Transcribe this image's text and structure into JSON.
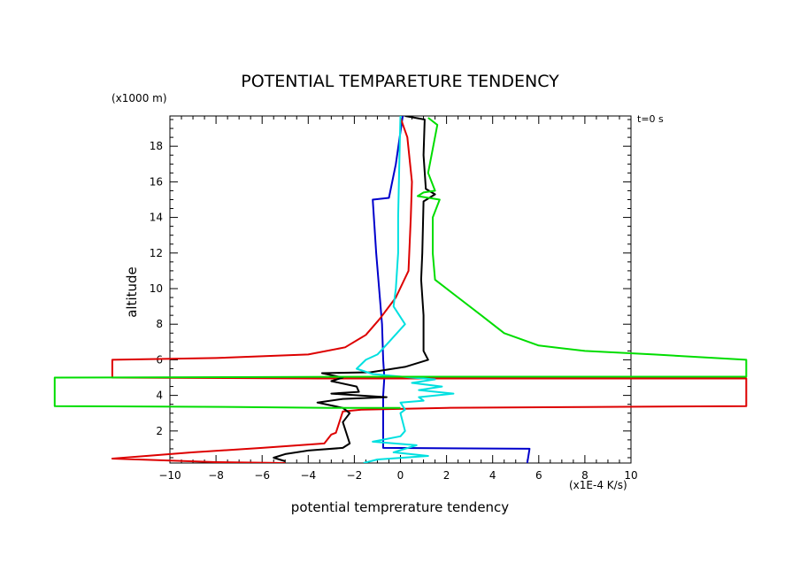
{
  "chart_data": {
    "type": "line",
    "title": "POTENTIAL TEMPARETURE TENDENCY",
    "xlabel": "potential temprerature tendency",
    "xunit": "(x1E-4 K/s)",
    "ylabel": "altitude",
    "yunit": "(x1000 m)",
    "time_label": "t=0 s",
    "xlim": [
      -10,
      10
    ],
    "ylim": [
      0.2,
      19.7
    ],
    "xticks": [
      -10,
      -8,
      -6,
      -4,
      -2,
      0,
      2,
      4,
      6,
      8,
      10
    ],
    "yticks": [
      2,
      4,
      6,
      8,
      10,
      12,
      14,
      16,
      18
    ],
    "series": [
      {
        "name": "blue",
        "color": "#0000cc",
        "points": [
          [
            0.1,
            19.7
          ],
          [
            -0.2,
            17.0
          ],
          [
            -0.5,
            15.1
          ],
          [
            -1.2,
            15.0
          ],
          [
            -1.05,
            12.0
          ],
          [
            -0.8,
            8.0
          ],
          [
            -0.75,
            6.0
          ],
          [
            -0.7,
            5.0
          ],
          [
            -0.75,
            4.0
          ],
          [
            -0.75,
            3.0
          ],
          [
            -0.75,
            1.05
          ],
          [
            5.6,
            1.0
          ],
          [
            5.5,
            0.2
          ]
        ]
      },
      {
        "name": "red",
        "color": "#dd0000",
        "points": [
          [
            0.0,
            19.6
          ],
          [
            0.3,
            18.5
          ],
          [
            0.5,
            16.0
          ],
          [
            0.45,
            14.0
          ],
          [
            0.35,
            11.0
          ],
          [
            -0.2,
            9.5
          ],
          [
            -0.9,
            8.3
          ],
          [
            -1.5,
            7.4
          ],
          [
            -2.4,
            6.7
          ],
          [
            -4,
            6.3
          ],
          [
            -8,
            6.1
          ],
          [
            -12.5,
            6.0
          ],
          [
            -12.5,
            5.0
          ],
          [
            -3.5,
            4.95
          ],
          [
            0,
            4.95
          ],
          [
            15,
            4.95
          ],
          [
            15,
            3.4
          ],
          [
            8,
            3.35
          ],
          [
            2,
            3.3
          ],
          [
            -1.7,
            3.2
          ],
          [
            -2.5,
            3.1
          ],
          [
            -2.7,
            2.3
          ],
          [
            -2.8,
            1.9
          ],
          [
            -3,
            1.8
          ],
          [
            -3.3,
            1.3
          ],
          [
            -6,
            1.05
          ],
          [
            -9,
            0.8
          ],
          [
            -12.5,
            0.45
          ],
          [
            -8,
            0.25
          ],
          [
            -5,
            0.2
          ]
        ]
      },
      {
        "name": "black",
        "color": "#000000",
        "points": [
          [
            0.2,
            19.7
          ],
          [
            1.05,
            19.5
          ],
          [
            1.0,
            17.5
          ],
          [
            1.1,
            15.6
          ],
          [
            1.5,
            15.3
          ],
          [
            1.0,
            14.9
          ],
          [
            0.95,
            12.0
          ],
          [
            0.9,
            10.5
          ],
          [
            1.0,
            8.5
          ],
          [
            1.0,
            6.5
          ],
          [
            1.2,
            6.0
          ],
          [
            0.2,
            5.6
          ],
          [
            -1.3,
            5.3
          ],
          [
            -3.4,
            5.25
          ],
          [
            -2.5,
            5.0
          ],
          [
            -3.0,
            4.8
          ],
          [
            -1.9,
            4.5
          ],
          [
            -1.8,
            4.2
          ],
          [
            -3.0,
            4.1
          ],
          [
            -1.8,
            4.0
          ],
          [
            -0.6,
            3.9
          ],
          [
            -2.5,
            3.8
          ],
          [
            -3.6,
            3.6
          ],
          [
            -2.5,
            3.3
          ],
          [
            -2.2,
            3.0
          ],
          [
            -2.5,
            2.5
          ],
          [
            -2.2,
            1.3
          ],
          [
            -2.5,
            1.05
          ],
          [
            -4.0,
            0.9
          ],
          [
            -5.0,
            0.7
          ],
          [
            -5.5,
            0.5
          ],
          [
            -5.0,
            0.3
          ]
        ]
      },
      {
        "name": "cyan",
        "color": "#00e0e0",
        "points": [
          [
            0.0,
            19.7
          ],
          [
            -0.05,
            17.0
          ],
          [
            -0.1,
            14.0
          ],
          [
            -0.1,
            12.0
          ],
          [
            -0.2,
            10.0
          ],
          [
            -0.3,
            9.0
          ],
          [
            0.2,
            8.0
          ],
          [
            -0.5,
            7.0
          ],
          [
            -1.0,
            6.3
          ],
          [
            -1.5,
            6.0
          ],
          [
            -1.9,
            5.5
          ],
          [
            -1.2,
            5.2
          ],
          [
            0.5,
            5.0
          ],
          [
            1.5,
            4.9
          ],
          [
            0.5,
            4.7
          ],
          [
            1.8,
            4.5
          ],
          [
            0.8,
            4.3
          ],
          [
            2.3,
            4.1
          ],
          [
            0.8,
            3.9
          ],
          [
            1.0,
            3.7
          ],
          [
            0.0,
            3.6
          ],
          [
            0.2,
            3.2
          ],
          [
            0.0,
            3.0
          ],
          [
            0.2,
            2.0
          ],
          [
            0.0,
            1.7
          ],
          [
            -1.2,
            1.4
          ],
          [
            0.7,
            1.2
          ],
          [
            -0.3,
            0.8
          ],
          [
            1.2,
            0.6
          ],
          [
            -1.0,
            0.4
          ],
          [
            -1.6,
            0.2
          ]
        ]
      },
      {
        "name": "green",
        "color": "#00dd00",
        "points": [
          [
            1.2,
            19.6
          ],
          [
            1.6,
            19.2
          ],
          [
            1.2,
            16.5
          ],
          [
            1.5,
            15.5
          ],
          [
            1.0,
            15.4
          ],
          [
            0.75,
            15.2
          ],
          [
            1.7,
            15.0
          ],
          [
            1.4,
            14.0
          ],
          [
            1.4,
            12.0
          ],
          [
            1.5,
            10.5
          ],
          [
            2.5,
            9.5
          ],
          [
            3.5,
            8.5
          ],
          [
            4.5,
            7.5
          ],
          [
            6.0,
            6.8
          ],
          [
            8.0,
            6.5
          ],
          [
            11.0,
            6.3
          ],
          [
            15,
            6.0
          ],
          [
            15,
            5.05
          ],
          [
            0,
            5.05
          ],
          [
            -15,
            5.0
          ],
          [
            -15,
            3.4
          ],
          [
            -7,
            3.35
          ],
          [
            -3,
            3.3
          ],
          [
            0,
            3.3
          ]
        ]
      }
    ]
  }
}
